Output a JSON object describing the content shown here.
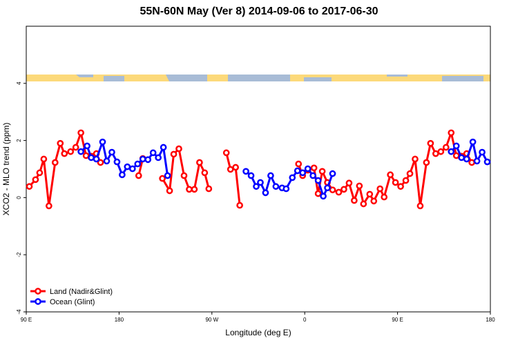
{
  "chart_data": {
    "type": "line",
    "title": "55N-60N May (Ver 8)   2014-09-06 to 2017-06-30",
    "x_label": "Longitude (deg E)",
    "y_label": "XCO2 - MLO trend (ppm)",
    "xlim": [
      90,
      540
    ],
    "xticks": [
      {
        "value": 90,
        "label": "90 E"
      },
      180,
      {
        "value": 270,
        "label": "90 W"
      },
      {
        "value": 360,
        "label": "0"
      },
      {
        "value": 450,
        "label": "90 E"
      },
      {
        "value": 540,
        "label": "180"
      }
    ],
    "ylim": [
      -4,
      6
    ],
    "yticks": [
      -4,
      -2,
      0,
      2,
      4
    ],
    "legend": "bottom-left",
    "series": [
      {
        "name": "Land (Nadir&Glint)",
        "color": "#ff0000",
        "x": [
          93,
          99,
          103,
          107,
          112,
          118,
          123,
          127,
          133,
          138,
          143,
          148,
          153,
          158,
          162,
          null,
          199,
          203,
          null,
          222,
          229,
          233,
          238,
          243,
          248,
          253,
          258,
          263,
          267,
          null,
          284,
          288,
          293,
          297,
          null,
          354,
          358,
          363,
          369,
          373,
          377,
          382,
          387,
          393,
          398,
          403,
          408,
          413,
          417,
          423,
          427,
          433,
          437,
          443,
          448,
          453,
          458,
          462,
          467,
          472,
          478,
          482,
          487,
          492,
          497,
          502,
          507,
          512,
          517,
          522
        ],
        "values": [
          0.39,
          0.63,
          0.87,
          1.35,
          -0.29,
          1.23,
          1.9,
          1.54,
          1.61,
          1.76,
          2.27,
          1.47,
          1.45,
          1.54,
          1.23,
          null,
          0.77,
          1.37,
          null,
          0.67,
          0.24,
          1.52,
          1.71,
          0.77,
          0.29,
          0.29,
          1.23,
          0.87,
          0.31,
          null,
          1.57,
          0.99,
          1.06,
          -0.27,
          null,
          1.18,
          0.77,
          0.96,
          1.04,
          0.14,
          0.92,
          0.53,
          0.27,
          0.19,
          0.29,
          0.51,
          -0.1,
          0.41,
          -0.22,
          0.12,
          -0.12,
          0.31,
          0.02,
          0.8,
          0.53,
          0.39,
          0.6,
          0.84,
          1.35,
          -0.29,
          1.23,
          1.9,
          1.54,
          1.61,
          1.76,
          2.27,
          1.47,
          1.45,
          1.54,
          1.23
        ]
      },
      {
        "name": "Ocean (Glint)",
        "color": "#0000ff",
        "x": [
          143,
          149,
          153,
          158,
          164,
          168,
          173,
          178,
          183,
          188,
          193,
          198,
          203,
          208,
          213,
          218,
          223,
          227,
          null,
          303,
          308,
          313,
          317,
          322,
          327,
          332,
          338,
          342,
          348,
          353,
          358,
          363,
          368,
          373,
          378,
          382,
          387,
          null,
          502,
          507,
          512,
          517,
          523,
          527,
          532,
          537
        ],
        "values": [
          1.61,
          1.81,
          1.4,
          1.35,
          1.95,
          1.28,
          1.59,
          1.25,
          0.8,
          1.08,
          1.01,
          1.18,
          1.35,
          1.33,
          1.57,
          1.4,
          1.76,
          0.77,
          null,
          0.92,
          0.77,
          0.39,
          0.53,
          0.17,
          0.77,
          0.39,
          0.34,
          0.31,
          0.7,
          0.94,
          0.87,
          1.01,
          0.77,
          0.6,
          0.05,
          0.34,
          0.84,
          null,
          1.61,
          1.81,
          1.4,
          1.35,
          1.95,
          1.28,
          1.59,
          1.25
        ]
      }
    ]
  }
}
